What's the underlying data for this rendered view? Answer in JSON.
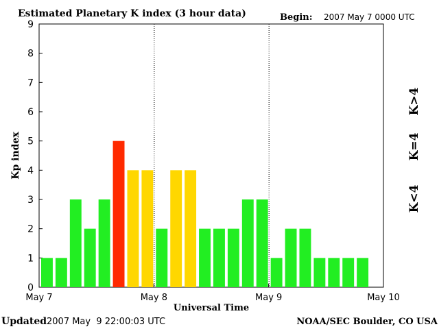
{
  "header": {
    "title": "Estimated Planetary K index (3 hour data)",
    "begin_label": "Begin:",
    "begin_value": "2007 May 7 0000 UTC"
  },
  "footer": {
    "updated_label": "Updated",
    "updated_value": "2007 May  9 22:00:03 UTC",
    "source": "NOAA/SEC Boulder, CO USA"
  },
  "legend": {
    "above": "K>4",
    "equal": "K=4",
    "below": "K<4"
  },
  "colors": {
    "below": "#22ee22",
    "equal": "#ffd700",
    "above": "#ff2a00",
    "axis": "#000000",
    "background": "#ffffff"
  },
  "chart_data": {
    "type": "bar",
    "title": "Estimated Planetary K index (3 hour data)",
    "xlabel": "Universal Time",
    "ylabel": "Kp index",
    "ylim": [
      0,
      9
    ],
    "yticks": [
      0,
      1,
      2,
      3,
      4,
      5,
      6,
      7,
      8,
      9
    ],
    "xticks": [
      "May 7",
      "May 8",
      "May 9",
      "May 10"
    ],
    "day_dividers": [
      "May 8",
      "May 9"
    ],
    "grid": false,
    "bars_per_day": 8,
    "values": [
      1,
      1,
      3,
      2,
      3,
      5,
      4,
      4,
      2,
      4,
      4,
      2,
      2,
      2,
      3,
      3,
      1,
      2,
      2,
      1,
      1,
      1,
      1
    ]
  }
}
